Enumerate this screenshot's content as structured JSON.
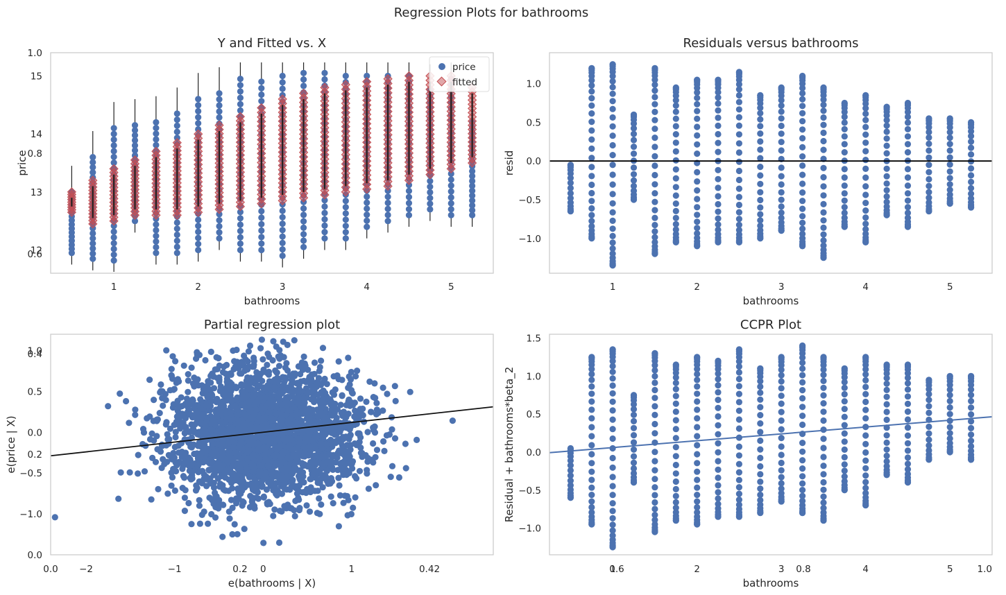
{
  "figure": {
    "suptitle": "Regression Plots for bathrooms"
  },
  "chart_data": [
    {
      "type": "scatter",
      "title": "Y and Fitted vs. X",
      "xlabel": "bathrooms",
      "ylabel": "price",
      "xlim": [
        0.25,
        5.5
      ],
      "ylim": [
        11.6,
        15.4
      ],
      "xticks": [
        1,
        2,
        3,
        4,
        5
      ],
      "yticks": [
        12,
        13,
        14,
        15
      ],
      "overlay_yticks": [
        "1.0",
        "0.8",
        "0.6"
      ],
      "legend": {
        "position": "top-right",
        "entries": [
          "price",
          "fitted"
        ]
      },
      "grid": false,
      "x": [
        0.5,
        0.75,
        1.0,
        1.25,
        1.5,
        1.75,
        2.0,
        2.25,
        2.5,
        2.75,
        3.0,
        3.25,
        3.5,
        3.75,
        4.0,
        4.25,
        4.5,
        4.75,
        5.0,
        5.25
      ],
      "series": [
        {
          "name": "price",
          "marker": "circle",
          "color": "#4c72b0",
          "ymin": [
            11.95,
            11.85,
            11.82,
            12.5,
            11.95,
            11.95,
            12.0,
            12.2,
            12.0,
            12.0,
            11.9,
            12.05,
            12.2,
            12.2,
            12.4,
            12.5,
            12.6,
            12.7,
            12.6,
            12.6
          ],
          "ymax": [
            13.0,
            13.6,
            14.1,
            14.15,
            14.2,
            14.35,
            14.6,
            14.7,
            14.95,
            14.9,
            15.0,
            15.05,
            15.05,
            15.0,
            15.0,
            15.0,
            15.0,
            14.75,
            14.95,
            14.2
          ]
        },
        {
          "name": "fitted",
          "marker": "diamond",
          "color": "#c44e52",
          "ymin": [
            12.65,
            12.45,
            12.5,
            12.6,
            12.6,
            12.6,
            12.65,
            12.7,
            12.75,
            12.8,
            12.85,
            12.9,
            12.95,
            13.0,
            13.05,
            13.1,
            13.2,
            13.3,
            13.4,
            13.5
          ],
          "ymax": [
            13.0,
            13.2,
            13.4,
            13.55,
            13.7,
            13.85,
            14.0,
            14.15,
            14.3,
            14.45,
            14.6,
            14.7,
            14.8,
            14.85,
            14.9,
            14.95,
            15.0,
            15.0,
            15.0,
            14.8
          ]
        }
      ]
    },
    {
      "type": "scatter",
      "title": "Residuals versus bathrooms",
      "xlabel": "bathrooms",
      "ylabel": "resid",
      "xlim": [
        0.25,
        5.5
      ],
      "ylim": [
        -1.45,
        1.4
      ],
      "xticks": [
        1,
        2,
        3,
        4,
        5
      ],
      "yticks": [
        "1.0",
        "0.5",
        "0.0",
        "−0.5",
        "−1.0"
      ],
      "reference_line": 0,
      "grid": false,
      "x": [
        0.5,
        0.75,
        1.0,
        1.25,
        1.5,
        1.75,
        2.0,
        2.25,
        2.5,
        2.75,
        3.0,
        3.25,
        3.5,
        3.75,
        4.0,
        4.25,
        4.5,
        4.75,
        5.0,
        5.25
      ],
      "series": [
        {
          "name": "",
          "color": "#4c72b0",
          "ymin": [
            -0.65,
            -1.0,
            -1.35,
            -0.5,
            -1.2,
            -1.05,
            -1.1,
            -1.05,
            -1.05,
            -1.0,
            -0.9,
            -1.1,
            -1.25,
            -0.85,
            -1.05,
            -0.7,
            -0.85,
            -0.65,
            -0.55,
            -0.6
          ],
          "ymax": [
            -0.05,
            1.2,
            1.25,
            0.6,
            1.2,
            0.95,
            1.05,
            1.05,
            1.15,
            0.85,
            0.95,
            1.1,
            0.95,
            0.75,
            0.85,
            0.7,
            0.75,
            0.55,
            0.55,
            0.5
          ]
        }
      ]
    },
    {
      "type": "scatter",
      "title": "Partial regression plot",
      "xlabel": "e(bathrooms | X)",
      "ylabel": "e(price | X)",
      "xlim": [
        -2.4,
        2.6
      ],
      "ylim": [
        -1.5,
        1.2
      ],
      "xticks": [
        "−2",
        "−1",
        "0",
        "1"
      ],
      "yticks": [
        "1.0",
        "0.5",
        "0.0",
        "−0.5",
        "−1.0"
      ],
      "overlay_xticks": [
        "0.0",
        "0.2",
        "0.42"
      ],
      "overlay_yticks": [
        "0.4",
        "0.2",
        "0.0"
      ],
      "fit_line": {
        "slope": 0.12,
        "intercept": 0.0
      },
      "grid": false,
      "cloud": {
        "center": [
          0.0,
          -0.02
        ],
        "spread_x": 0.55,
        "spread_y": 0.42,
        "n": 2600
      }
    },
    {
      "type": "scatter",
      "title": "CCPR Plot",
      "xlabel": "bathrooms",
      "ylabel": "Residual + bathrooms*beta_2",
      "xlim": [
        0.25,
        5.5
      ],
      "ylim": [
        -1.35,
        1.55
      ],
      "xticks": [
        "1",
        "2",
        "3",
        "4",
        "5"
      ],
      "yticks": [
        "1.5",
        "1.0",
        "0.5",
        "0.0",
        "−0.5",
        "−1.0"
      ],
      "overlay_xticks": [
        "0.6",
        "0.8",
        "1.0"
      ],
      "fit_line": {
        "slope": 0.09,
        "intercept": 0.0
      },
      "grid": false,
      "x": [
        0.5,
        0.75,
        1.0,
        1.25,
        1.5,
        1.75,
        2.0,
        2.25,
        2.5,
        2.75,
        3.0,
        3.25,
        3.5,
        3.75,
        4.0,
        4.25,
        4.5,
        4.75,
        5.0,
        5.25
      ],
      "series": [
        {
          "name": "",
          "color": "#4c72b0",
          "ymin": [
            -0.6,
            -0.95,
            -1.25,
            -0.4,
            -1.05,
            -0.9,
            -0.95,
            -0.85,
            -0.85,
            -0.8,
            -0.65,
            -0.8,
            -0.9,
            -0.5,
            -0.7,
            -0.3,
            -0.4,
            -0.1,
            0.0,
            -0.1
          ],
          "ymax": [
            0.05,
            1.25,
            1.35,
            0.75,
            1.3,
            1.15,
            1.25,
            1.2,
            1.35,
            1.1,
            1.25,
            1.4,
            1.25,
            1.1,
            1.25,
            1.15,
            1.15,
            0.95,
            1.0,
            1.0
          ]
        }
      ]
    }
  ]
}
